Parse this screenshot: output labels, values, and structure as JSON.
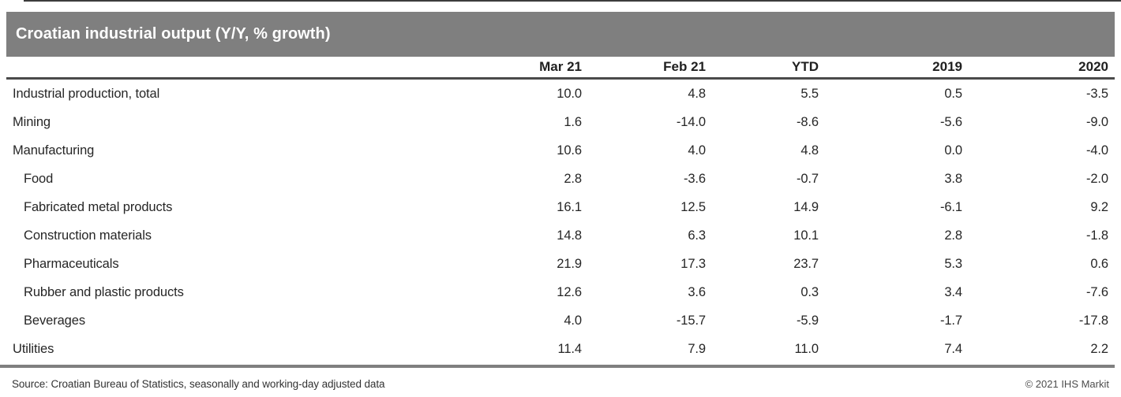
{
  "title": "Croatian industrial output (Y/Y, % growth)",
  "chart_data": {
    "type": "table",
    "title": "Croatian industrial output (Y/Y, % growth)",
    "columns": [
      "Mar 21",
      "Feb 21",
      "YTD",
      "2019",
      "2020"
    ],
    "rows": [
      {
        "label": "Industrial production, total",
        "indent": 0,
        "values": [
          10.0,
          4.8,
          5.5,
          0.5,
          -3.5
        ]
      },
      {
        "label": "Mining",
        "indent": 0,
        "values": [
          1.6,
          -14.0,
          -8.6,
          -5.6,
          -9.0
        ]
      },
      {
        "label": "Manufacturing",
        "indent": 0,
        "values": [
          10.6,
          4.0,
          4.8,
          0.0,
          -4.0
        ]
      },
      {
        "label": "Food",
        "indent": 1,
        "values": [
          2.8,
          -3.6,
          -0.7,
          3.8,
          -2.0
        ]
      },
      {
        "label": "Fabricated metal products",
        "indent": 1,
        "values": [
          16.1,
          12.5,
          14.9,
          -6.1,
          9.2
        ]
      },
      {
        "label": "Construction materials",
        "indent": 1,
        "values": [
          14.8,
          6.3,
          10.1,
          2.8,
          -1.8
        ]
      },
      {
        "label": "Pharmaceuticals",
        "indent": 1,
        "values": [
          21.9,
          17.3,
          23.7,
          5.3,
          0.6
        ]
      },
      {
        "label": "Rubber and plastic products",
        "indent": 1,
        "values": [
          12.6,
          3.6,
          0.3,
          3.4,
          -7.6
        ]
      },
      {
        "label": "Beverages",
        "indent": 1,
        "values": [
          4.0,
          -15.7,
          -5.9,
          -1.7,
          -17.8
        ]
      },
      {
        "label": "Utilities",
        "indent": 0,
        "values": [
          11.4,
          7.9,
          11.0,
          7.4,
          2.2
        ]
      }
    ],
    "value_format": "one_decimal",
    "grid": false,
    "legend_position": "none"
  },
  "footer": {
    "source": "Source: Croatian Bureau of Statistics, seasonally and working-day adjusted data",
    "copyright": "© 2021 IHS Markit"
  },
  "colors": {
    "title_bar_bg": "#7f7f7f",
    "title_text": "#ffffff",
    "header_text": "#1f1f1f",
    "body_text": "#262626",
    "header_underline": "#4a4a4a",
    "footer_divider": "#7f7f7f",
    "top_border": "#3d3d3d",
    "source_text": "#333333",
    "copyright_text": "#4d4d4d"
  }
}
